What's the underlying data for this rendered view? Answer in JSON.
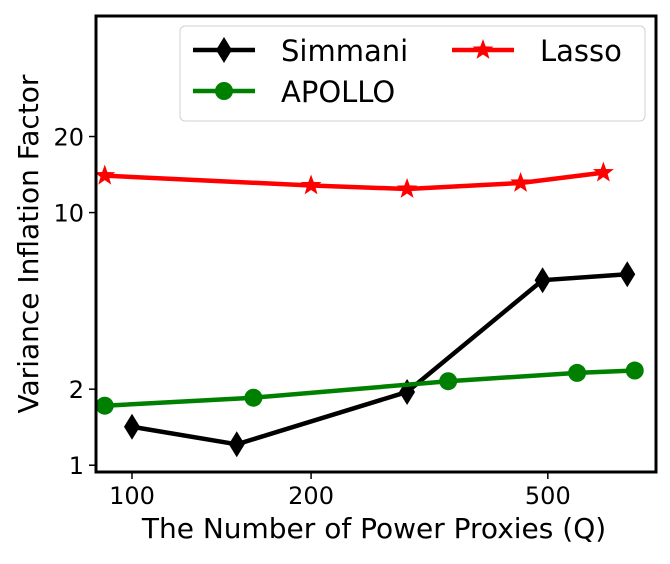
{
  "chart_data": {
    "type": "line",
    "title": "",
    "xlabel": "The Number of Power Proxies (Q)",
    "ylabel": "Variance Inflation Factor",
    "xscale": "log",
    "yscale": "log",
    "xlim": [
      87,
      760
    ],
    "ylim": [
      0.94,
      60
    ],
    "xticks": [
      100,
      200,
      500
    ],
    "xtick_labels": [
      "100",
      "200",
      "500"
    ],
    "yticks": [
      1,
      2,
      10,
      20
    ],
    "ytick_labels": [
      "1",
      "2",
      "10",
      "20"
    ],
    "grid": false,
    "legend_position": "top-right",
    "series": [
      {
        "name": "Simmani",
        "color": "#000000",
        "marker": "diamond",
        "x": [
          100,
          150,
          290,
          490,
          680
        ],
        "y": [
          1.42,
          1.21,
          1.95,
          5.4,
          5.7
        ]
      },
      {
        "name": "APOLLO",
        "color": "#008000",
        "marker": "circle",
        "x": [
          90,
          160,
          340,
          560,
          700
        ],
        "y": [
          1.72,
          1.85,
          2.15,
          2.32,
          2.37
        ]
      },
      {
        "name": "Lasso",
        "color": "#ff0000",
        "marker": "star",
        "x": [
          90,
          200,
          290,
          450,
          620
        ],
        "y": [
          14.0,
          12.8,
          12.4,
          13.1,
          14.4
        ]
      }
    ]
  }
}
